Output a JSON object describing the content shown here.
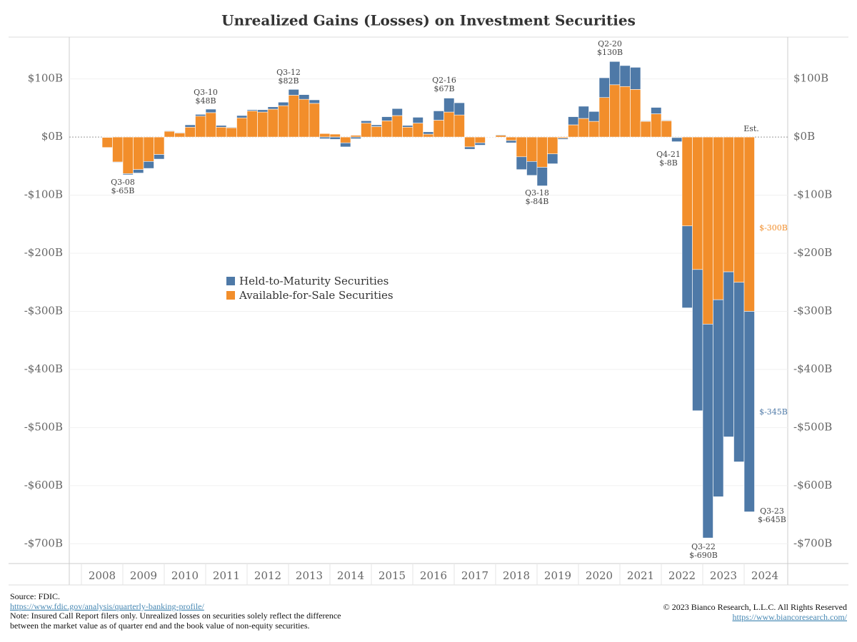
{
  "chart_data": {
    "type": "stacked_bar",
    "title": "Unrealized Gains (Losses) on Investment Securities",
    "categories": [
      "2008",
      null,
      null,
      null,
      "2009",
      null,
      null,
      null,
      "2010",
      null,
      null,
      null,
      "2011",
      null,
      null,
      null,
      "2012",
      null,
      null,
      null,
      "2013",
      null,
      null,
      null,
      "2014",
      null,
      null,
      null,
      "2015",
      null,
      null,
      null,
      "2016",
      null,
      null,
      null,
      "2017",
      null,
      null,
      null,
      "2018",
      null,
      null,
      null,
      "2019",
      null,
      null,
      null,
      "2020",
      null,
      null,
      null,
      "2021",
      null,
      null,
      null,
      "2022",
      null,
      null,
      null,
      "2023",
      null,
      null,
      null,
      "2024"
    ],
    "series": [
      {
        "name": "Available-for-Sale Securities",
        "color": "#f28e2b",
        "values": [
          -18,
          -43,
          -63,
          -56,
          -42,
          -30,
          10,
          7,
          17,
          36,
          42,
          17,
          16,
          33,
          45,
          43,
          48,
          54,
          72,
          65,
          58,
          6,
          5,
          -10,
          3,
          24,
          18,
          28,
          37,
          17,
          24,
          5,
          29,
          43,
          38,
          -17,
          -10,
          1,
          3,
          -6,
          -34,
          -42,
          -52,
          -29,
          -2,
          21,
          32,
          27,
          68,
          90,
          87,
          82,
          27,
          40,
          28,
          -1,
          -153,
          -228,
          -322,
          -280,
          -232,
          -250,
          -300,
          null,
          null
        ]
      },
      {
        "name": "Held-to-Maturity Securities",
        "color": "#4e79a7",
        "values": [
          0,
          -1,
          -2,
          -6,
          -12,
          -8,
          1,
          1,
          4,
          3,
          6,
          3,
          1,
          4,
          2,
          4,
          4,
          6,
          10,
          8,
          6,
          -3,
          -4,
          -7,
          -3,
          4,
          3,
          7,
          12,
          3,
          10,
          4,
          16,
          24,
          21,
          -4,
          -4,
          0,
          1,
          -4,
          -22,
          -24,
          -32,
          -17,
          -2,
          14,
          21,
          17,
          34,
          40,
          36,
          38,
          1,
          11,
          1,
          -7,
          -141,
          -243,
          -368,
          -339,
          -284,
          -309,
          -345,
          null,
          null
        ]
      }
    ],
    "ylim": [
      -734,
      172
    ],
    "yticks": [
      {
        "value": 100,
        "label": "$100B"
      },
      {
        "value": 0,
        "label": "$0B"
      },
      {
        "value": -100,
        "label": "-$100B"
      },
      {
        "value": -200,
        "label": "-$200B"
      },
      {
        "value": -300,
        "label": "-$300B"
      },
      {
        "value": -400,
        "label": "-$400B"
      },
      {
        "value": -500,
        "label": "-$500B"
      },
      {
        "value": -600,
        "label": "-$600B"
      },
      {
        "value": -700,
        "label": "-$700B"
      }
    ],
    "grid": true,
    "annotations": [
      "Q3-08",
      "$-65B",
      "Q3-10",
      "$48B",
      "Q3-12",
      "$82B",
      "Q2-16",
      "$67B",
      "Q2-20",
      "$130B",
      "Q4-21",
      "$-8B",
      "Q3-18",
      "$-84B",
      "Est.",
      "$-300B",
      "$-345B",
      "Q3-23",
      "$-645B",
      "Q3-22",
      "$-690B"
    ]
  },
  "footer": {
    "source": "Source: FDIC.",
    "source_url": "https://www.fdic.gov/analysis/quarterly-banking-profile/",
    "note_1": "Note: Insured Call Report filers only. Unrealized losses on securities solely reflect the difference",
    "note_2": "between the market value as of quarter end and the book value of non-equity securities.",
    "copyright": "© 2023 Bianco Research, L.L.C. All Rights Reserved",
    "site_url": "https://www.biancoresearch.com/"
  }
}
